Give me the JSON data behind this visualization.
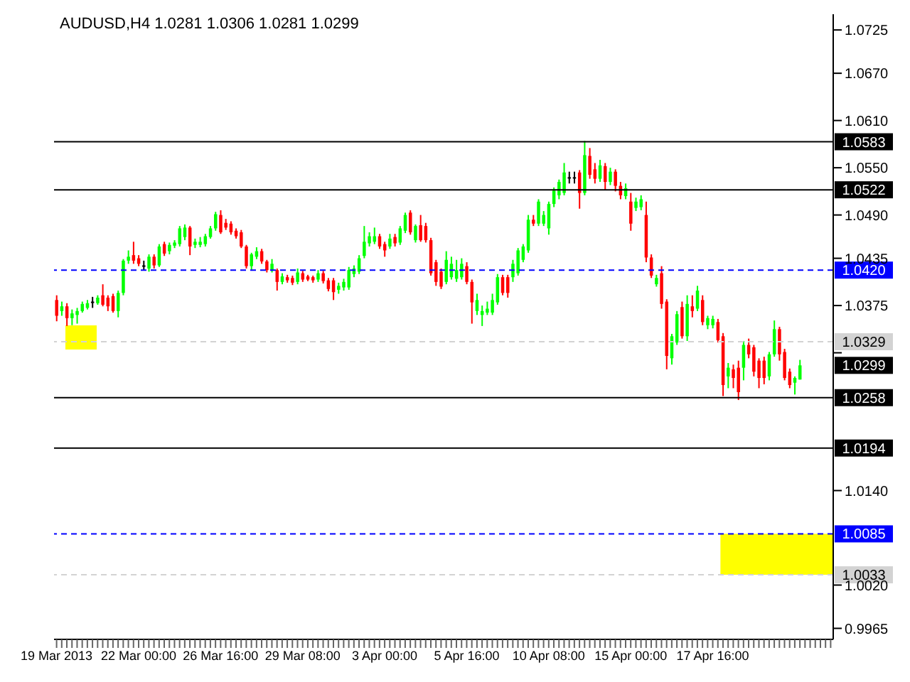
{
  "chart_data": {
    "type": "candlestick",
    "title": "AUDUSD,H4  1.0281 1.0306 1.0281 1.0299",
    "categories": [
      "19 Mar 2013",
      null,
      null,
      null,
      null,
      null,
      null,
      null,
      null,
      null,
      null,
      null,
      null,
      null,
      null,
      null,
      "22 Mar 00:00",
      null,
      null,
      null,
      null,
      null,
      null,
      null,
      null,
      null,
      null,
      null,
      null,
      null,
      null,
      null,
      "26 Mar 16:00",
      null,
      null,
      null,
      null,
      null,
      null,
      null,
      null,
      null,
      null,
      null,
      null,
      null,
      null,
      null,
      "29 Mar 08:00",
      null,
      null,
      null,
      null,
      null,
      null,
      null,
      null,
      null,
      null,
      null,
      null,
      null,
      null,
      null,
      "3 Apr 00:00",
      null,
      null,
      null,
      null,
      null,
      null,
      null,
      null,
      null,
      null,
      null,
      null,
      null,
      null,
      null,
      "5 Apr 16:00",
      null,
      null,
      null,
      null,
      null,
      null,
      null,
      null,
      null,
      null,
      null,
      null,
      null,
      null,
      null,
      "10 Apr 08:00",
      null,
      null,
      null,
      null,
      null,
      null,
      null,
      null,
      null,
      null,
      null,
      null,
      null,
      null,
      null,
      "15 Apr 00:00",
      null,
      null,
      null,
      null,
      null,
      null,
      null,
      null,
      null,
      null,
      null,
      null,
      null,
      null,
      null,
      "17 Apr 16:00",
      null,
      null,
      null,
      null,
      null,
      null,
      null,
      null,
      null,
      null,
      null,
      null,
      null,
      null,
      null,
      null,
      null,
      null,
      null,
      null,
      null,
      null,
      null
    ],
    "ohlc": [
      [
        1.0382,
        1.0388,
        1.0355,
        1.0362
      ],
      [
        1.0368,
        1.038,
        1.0362,
        1.0374
      ],
      [
        1.0374,
        1.0378,
        1.0349,
        1.0359
      ],
      [
        1.0359,
        1.037,
        1.035,
        1.0365
      ],
      [
        1.0363,
        1.0372,
        1.0352,
        1.0368
      ],
      [
        1.0368,
        1.038,
        1.0366,
        1.0377
      ],
      [
        1.0372,
        1.0382,
        1.037,
        1.0378
      ],
      [
        1.038,
        1.0386,
        1.0372,
        1.038
      ],
      [
        1.0378,
        1.0388,
        1.0376,
        1.0385
      ],
      [
        1.0388,
        1.0402,
        1.0374,
        1.0376
      ],
      [
        1.0385,
        1.0388,
        1.0368,
        1.0374
      ],
      [
        1.0387,
        1.039,
        1.0366,
        1.0368
      ],
      [
        1.0368,
        1.0394,
        1.036,
        1.0391
      ],
      [
        1.0391,
        1.0434,
        1.0388,
        1.0432
      ],
      [
        1.0432,
        1.0445,
        1.0428,
        1.0437
      ],
      [
        1.0439,
        1.0456,
        1.0428,
        1.0432
      ],
      [
        1.0435,
        1.0439,
        1.0425,
        1.0428
      ],
      [
        1.0426,
        1.0432,
        1.042,
        1.0426
      ],
      [
        1.0422,
        1.044,
        1.0418,
        1.0437
      ],
      [
        1.0437,
        1.044,
        1.0422,
        1.0426
      ],
      [
        1.0426,
        1.0453,
        1.0424,
        1.045
      ],
      [
        1.0453,
        1.0456,
        1.0438,
        1.0441
      ],
      [
        1.0444,
        1.0455,
        1.044,
        1.0452
      ],
      [
        1.0451,
        1.0458,
        1.0448,
        1.0455
      ],
      [
        1.0453,
        1.0476,
        1.045,
        1.0473
      ],
      [
        1.0462,
        1.0478,
        1.0458,
        1.0474
      ],
      [
        1.0474,
        1.0476,
        1.0439,
        1.045
      ],
      [
        1.0452,
        1.046,
        1.0448,
        1.0456
      ],
      [
        1.0452,
        1.0462,
        1.0449,
        1.0456
      ],
      [
        1.0453,
        1.0466,
        1.045,
        1.0463
      ],
      [
        1.0462,
        1.0476,
        1.046,
        1.0473
      ],
      [
        1.0473,
        1.0494,
        1.047,
        1.0491
      ],
      [
        1.049,
        1.0496,
        1.0466,
        1.0468
      ],
      [
        1.048,
        1.0485,
        1.0471,
        1.0474
      ],
      [
        1.0479,
        1.0482,
        1.0465,
        1.0468
      ],
      [
        1.047,
        1.0473,
        1.046,
        1.0463
      ],
      [
        1.0468,
        1.0471,
        1.0448,
        1.045
      ],
      [
        1.045,
        1.0452,
        1.0422,
        1.0425
      ],
      [
        1.0425,
        1.0442,
        1.042,
        1.044
      ],
      [
        1.0437,
        1.0449,
        1.0434,
        1.0444
      ],
      [
        1.0444,
        1.0447,
        1.0428,
        1.0431
      ],
      [
        1.0431,
        1.0433,
        1.0417,
        1.042
      ],
      [
        1.042,
        1.0434,
        1.0417,
        1.0428
      ],
      [
        1.042,
        1.0422,
        1.0394,
        1.0405
      ],
      [
        1.0405,
        1.0416,
        1.0402,
        1.0412
      ],
      [
        1.0411,
        1.0414,
        1.0404,
        1.0407
      ],
      [
        1.041,
        1.0413,
        1.0401,
        1.0404
      ],
      [
        1.0405,
        1.0422,
        1.0402,
        1.0417
      ],
      [
        1.0416,
        1.0419,
        1.0405,
        1.0408
      ],
      [
        1.0412,
        1.0414,
        1.0406,
        1.0408
      ],
      [
        1.0411,
        1.0413,
        1.0404,
        1.0407
      ],
      [
        1.0408,
        1.042,
        1.0405,
        1.0416
      ],
      [
        1.0416,
        1.0419,
        1.0403,
        1.0406
      ],
      [
        1.0407,
        1.041,
        1.0393,
        1.0396
      ],
      [
        1.0407,
        1.041,
        1.0382,
        1.0392
      ],
      [
        1.0395,
        1.0404,
        1.039,
        1.04
      ],
      [
        1.0398,
        1.0409,
        1.0394,
        1.0405
      ],
      [
        1.0398,
        1.0424,
        1.0395,
        1.042
      ],
      [
        1.0415,
        1.0426,
        1.0411,
        1.0422
      ],
      [
        1.0418,
        1.0439,
        1.0415,
        1.0435
      ],
      [
        1.0438,
        1.0476,
        1.0435,
        1.0456
      ],
      [
        1.0454,
        1.0468,
        1.045,
        1.0463
      ],
      [
        1.0456,
        1.0474,
        1.0453,
        1.0463
      ],
      [
        1.0463,
        1.0466,
        1.0447,
        1.045
      ],
      [
        1.0453,
        1.0456,
        1.0437,
        1.0445
      ],
      [
        1.045,
        1.0466,
        1.0447,
        1.046
      ],
      [
        1.0462,
        1.0466,
        1.045,
        1.0454
      ],
      [
        1.0455,
        1.0476,
        1.0452,
        1.0473
      ],
      [
        1.047,
        1.0493,
        1.0467,
        1.049
      ],
      [
        1.0493,
        1.0496,
        1.0465,
        1.0468
      ],
      [
        1.0458,
        1.0478,
        1.0455,
        1.0476
      ],
      [
        1.0477,
        1.049,
        1.0456,
        1.0458
      ],
      [
        1.0476,
        1.048,
        1.0455,
        1.0458
      ],
      [
        1.0458,
        1.0461,
        1.0413,
        1.0416
      ],
      [
        1.043,
        1.0433,
        1.04,
        1.0405
      ],
      [
        1.0418,
        1.0422,
        1.0396,
        1.0399
      ],
      [
        1.0405,
        1.0444,
        1.0402,
        1.0433
      ],
      [
        1.0411,
        1.0437,
        1.0408,
        1.0428
      ],
      [
        1.0409,
        1.0433,
        1.0405,
        1.042
      ],
      [
        1.0411,
        1.0435,
        1.0408,
        1.0428
      ],
      [
        1.0425,
        1.043,
        1.0402,
        1.0405
      ],
      [
        1.0405,
        1.0408,
        1.0352,
        1.0379
      ],
      [
        1.0368,
        1.039,
        1.0363,
        1.0382
      ],
      [
        1.0363,
        1.0375,
        1.0349,
        1.0368
      ],
      [
        1.0366,
        1.038,
        1.0363,
        1.0371
      ],
      [
        1.0366,
        1.039,
        1.0363,
        1.0382
      ],
      [
        1.0379,
        1.0415,
        1.0376,
        1.0411
      ],
      [
        1.0411,
        1.0414,
        1.0388,
        1.0391
      ],
      [
        1.0411,
        1.0414,
        1.0385,
        1.0391
      ],
      [
        1.0411,
        1.0433,
        1.0405,
        1.0428
      ],
      [
        1.0416,
        1.0448,
        1.0413,
        1.0445
      ],
      [
        1.0433,
        1.0453,
        1.043,
        1.045
      ],
      [
        1.0445,
        1.049,
        1.0442,
        1.0484
      ],
      [
        1.0484,
        1.049,
        1.0476,
        1.0479
      ],
      [
        1.0479,
        1.051,
        1.0476,
        1.0507
      ],
      [
        1.0479,
        1.0495,
        1.0476,
        1.049
      ],
      [
        1.0473,
        1.0507,
        1.0465,
        1.0504
      ],
      [
        1.0504,
        1.0525,
        1.05,
        1.0521
      ],
      [
        1.0515,
        1.0535,
        1.051,
        1.0532
      ],
      [
        1.0518,
        1.0556,
        1.0515,
        1.0544
      ],
      [
        1.0538,
        1.0545,
        1.053,
        1.0538
      ],
      [
        1.0538,
        1.0545,
        1.053,
        1.0538
      ],
      [
        1.0544,
        1.0547,
        1.0498,
        1.0518
      ],
      [
        1.0518,
        1.0584,
        1.0515,
        1.0566
      ],
      [
        1.0565,
        1.0575,
        1.0536,
        1.0541
      ],
      [
        1.0548,
        1.0556,
        1.053,
        1.0536
      ],
      [
        1.0536,
        1.056,
        1.0532,
        1.0553
      ],
      [
        1.0552,
        1.0556,
        1.0522,
        1.0532
      ],
      [
        1.0532,
        1.055,
        1.0528,
        1.0545
      ],
      [
        1.0545,
        1.0548,
        1.052,
        1.0527
      ],
      [
        1.0527,
        1.0532,
        1.051,
        1.0515
      ],
      [
        1.0514,
        1.053,
        1.051,
        1.0524
      ],
      [
        1.0507,
        1.0518,
        1.047,
        1.0479
      ],
      [
        1.0499,
        1.0512,
        1.0495,
        1.0507
      ],
      [
        1.05,
        1.0515,
        1.0496,
        1.051
      ],
      [
        1.049,
        1.0507,
        1.043,
        1.0436
      ],
      [
        1.0436,
        1.044,
        1.041,
        1.0413
      ],
      [
        1.0402,
        1.0414,
        1.0399,
        1.041
      ],
      [
        1.0416,
        1.0425,
        1.0371,
        1.0377
      ],
      [
        1.038,
        1.0383,
        1.0294,
        1.0311
      ],
      [
        1.0308,
        1.0339,
        1.03,
        1.0336
      ],
      [
        1.0328,
        1.0368,
        1.0325,
        1.0364
      ],
      [
        1.0373,
        1.038,
        1.0333,
        1.0336
      ],
      [
        1.0336,
        1.0388,
        1.033,
        1.0377
      ],
      [
        1.0374,
        1.0388,
        1.036,
        1.0368
      ],
      [
        1.0371,
        1.04,
        1.0368,
        1.0394
      ],
      [
        1.0382,
        1.0388,
        1.035,
        1.0354
      ],
      [
        1.035,
        1.0362,
        1.0345,
        1.0359
      ],
      [
        1.035,
        1.0362,
        1.0346,
        1.0358
      ],
      [
        1.0354,
        1.0358,
        1.0328,
        1.0331
      ],
      [
        1.0336,
        1.034,
        1.026,
        1.0274
      ],
      [
        1.0285,
        1.0302,
        1.027,
        1.0296
      ],
      [
        1.0294,
        1.03,
        1.027,
        1.0283
      ],
      [
        1.0296,
        1.0305,
        1.0255,
        1.0265
      ],
      [
        1.0296,
        1.033,
        1.028,
        1.0325
      ],
      [
        1.0325,
        1.0333,
        1.0308,
        1.0313
      ],
      [
        1.0322,
        1.0325,
        1.0285,
        1.0291
      ],
      [
        1.0305,
        1.0308,
        1.027,
        1.0283
      ],
      [
        1.0305,
        1.031,
        1.0275,
        1.0283
      ],
      [
        1.0285,
        1.0316,
        1.028,
        1.0313
      ],
      [
        1.0313,
        1.0356,
        1.031,
        1.0345
      ],
      [
        1.0345,
        1.0348,
        1.0305,
        1.0313
      ],
      [
        1.0316,
        1.032,
        1.028,
        1.0283
      ],
      [
        1.0291,
        1.0295,
        1.027,
        1.0274
      ],
      [
        1.0277,
        1.0285,
        1.0262,
        1.0283
      ],
      [
        1.0281,
        1.0306,
        1.0281,
        1.0299
      ],
      null,
      null,
      null,
      null,
      null,
      null
    ],
    "colors": [
      "#ff0000",
      "#00ff00",
      "#ff0000",
      "#00ff00",
      "#00ff00",
      "#00ff00",
      "#00ff00",
      "#000000",
      "#00ff00",
      "#ff0000",
      "#ff0000",
      "#ff0000",
      "#00ff00",
      "#00ff00",
      "#00ff00",
      "#ff0000",
      "#ff0000",
      "#000000",
      "#00ff00",
      "#ff0000",
      "#00ff00",
      "#ff0000",
      "#00ff00",
      "#00ff00",
      "#00ff00",
      "#00ff00",
      "#ff0000",
      "#00ff00",
      "#00ff00",
      "#00ff00",
      "#00ff00",
      "#00ff00",
      "#ff0000",
      "#ff0000",
      "#ff0000",
      "#ff0000",
      "#ff0000",
      "#ff0000",
      "#00ff00",
      "#00ff00",
      "#ff0000",
      "#ff0000",
      "#00ff00",
      "#ff0000",
      "#00ff00",
      "#ff0000",
      "#ff0000",
      "#00ff00",
      "#ff0000",
      "#ff0000",
      "#ff0000",
      "#00ff00",
      "#ff0000",
      "#ff0000",
      "#ff0000",
      "#00ff00",
      "#00ff00",
      "#00ff00",
      "#00ff00",
      "#00ff00",
      "#00ff00",
      "#00ff00",
      "#00ff00",
      "#ff0000",
      "#ff0000",
      "#00ff00",
      "#ff0000",
      "#00ff00",
      "#00ff00",
      "#ff0000",
      "#00ff00",
      "#ff0000",
      "#ff0000",
      "#ff0000",
      "#ff0000",
      "#ff0000",
      "#00ff00",
      "#00ff00",
      "#00ff00",
      "#00ff00",
      "#ff0000",
      "#ff0000",
      "#00ff00",
      "#00ff00",
      "#00ff00",
      "#00ff00",
      "#00ff00",
      "#ff0000",
      "#ff0000",
      "#00ff00",
      "#00ff00",
      "#00ff00",
      "#00ff00",
      "#ff0000",
      "#00ff00",
      "#00ff00",
      "#00ff00",
      "#00ff00",
      "#00ff00",
      "#00ff00",
      "#000000",
      "#000000",
      "#ff0000",
      "#00ff00",
      "#ff0000",
      "#ff0000",
      "#00ff00",
      "#ff0000",
      "#00ff00",
      "#ff0000",
      "#ff0000",
      "#00ff00",
      "#ff0000",
      "#00ff00",
      "#00ff00",
      "#ff0000",
      "#ff0000",
      "#00ff00",
      "#ff0000",
      "#ff0000",
      "#00ff00",
      "#00ff00",
      "#ff0000",
      "#00ff00",
      "#ff0000",
      "#00ff00",
      "#ff0000",
      "#00ff00",
      "#00ff00",
      "#ff0000",
      "#ff0000",
      "#00ff00",
      "#ff0000",
      "#ff0000",
      "#00ff00",
      "#ff0000",
      "#ff0000",
      "#ff0000",
      "#ff0000",
      "#00ff00",
      "#00ff00",
      "#ff0000",
      "#ff0000",
      "#ff0000",
      "#00ff00",
      "#00ff00",
      null,
      null,
      null,
      null,
      null,
      null
    ],
    "ylim": [
      0.9951,
      1.0745
    ],
    "yticks": [
      {
        "value": 1.0725,
        "label": "1.0725"
      },
      {
        "value": 1.067,
        "label": "1.0670"
      },
      {
        "value": 1.061,
        "label": "1.0610"
      },
      {
        "value": 1.055,
        "label": "1.0550"
      },
      {
        "value": 1.049,
        "label": "1.0490"
      },
      {
        "value": 1.0435,
        "label": "1.0435"
      },
      {
        "value": 1.0375,
        "label": "1.0375"
      },
      {
        "value": 1.0315,
        "label": null
      },
      {
        "value": 1.014,
        "label": "1.0140"
      },
      {
        "value": 1.002,
        "label": "1.0020"
      },
      {
        "value": 0.9965,
        "label": "0.9965"
      }
    ],
    "ref_lines": [
      {
        "axis": "y",
        "value": 1.0583,
        "label": "1.0583",
        "color": "#000000",
        "line_style": "solid"
      },
      {
        "axis": "y",
        "value": 1.0522,
        "label": "1.0522",
        "color": "#000000",
        "line_style": "solid"
      },
      {
        "axis": "y",
        "value": 1.042,
        "label": "1.0420",
        "color": "#0000ff",
        "line_style": "dashed"
      },
      {
        "axis": "y",
        "value": 1.0329,
        "label": "1.0329",
        "color": "#d3d3d3",
        "line_style": "dashed"
      },
      {
        "axis": "y",
        "value": 1.0258,
        "label": "1.0258",
        "color": "#000000",
        "line_style": "solid"
      },
      {
        "axis": "y",
        "value": 1.0194,
        "label": "1.0194",
        "color": "#000000",
        "line_style": "solid"
      },
      {
        "axis": "y",
        "value": 1.0085,
        "label": "1.0085",
        "color": "#0000ff",
        "line_style": "dashed"
      },
      {
        "axis": "y",
        "value": 1.0033,
        "label": "1.0033",
        "color": "#d3d3d3",
        "line_style": "dashed"
      }
    ],
    "annotations": [
      "1.0299"
    ],
    "bands": [
      {
        "axis": "y",
        "from": 1.0033,
        "to": 1.0085,
        "color": "#ffff00"
      }
    ]
  }
}
